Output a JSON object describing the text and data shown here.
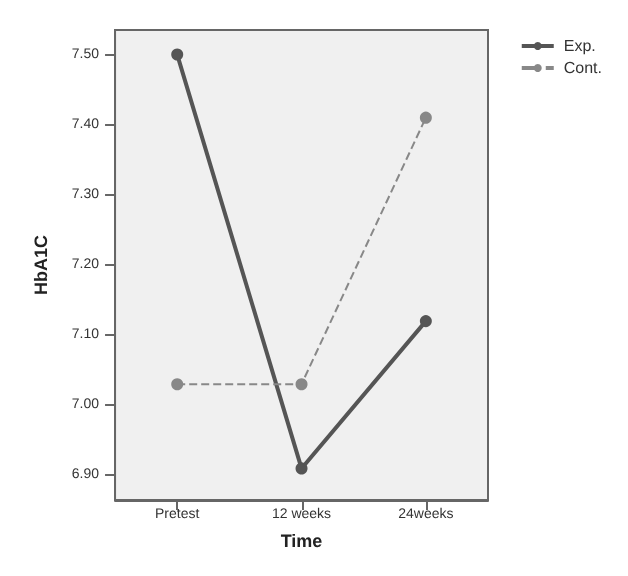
{
  "chart_data": {
    "type": "line",
    "xlabel": "Time",
    "ylabel": "HbA1C",
    "categories": [
      "Pretest",
      "12 weeks",
      "24weeks"
    ],
    "series": [
      {
        "name": "Exp.",
        "color": "#555555",
        "values": [
          7.5,
          6.91,
          7.12
        ],
        "line_style": "solid"
      },
      {
        "name": "Cont.",
        "color": "#888888",
        "values": [
          7.03,
          7.03,
          7.41
        ],
        "line_style": "dashed"
      }
    ],
    "ylim": [
      6.865,
      7.535
    ],
    "yticks": [
      {
        "value": 6.9,
        "label": "6.90"
      },
      {
        "value": 7.0,
        "label": "7.00"
      },
      {
        "value": 7.1,
        "label": "7.10"
      },
      {
        "value": 7.2,
        "label": "7.20"
      },
      {
        "value": 7.3,
        "label": "7.30"
      },
      {
        "value": 7.4,
        "label": "7.40"
      },
      {
        "value": 7.5,
        "label": "7.50"
      }
    ],
    "grid": false,
    "legend": "top right",
    "marker": "circle"
  }
}
